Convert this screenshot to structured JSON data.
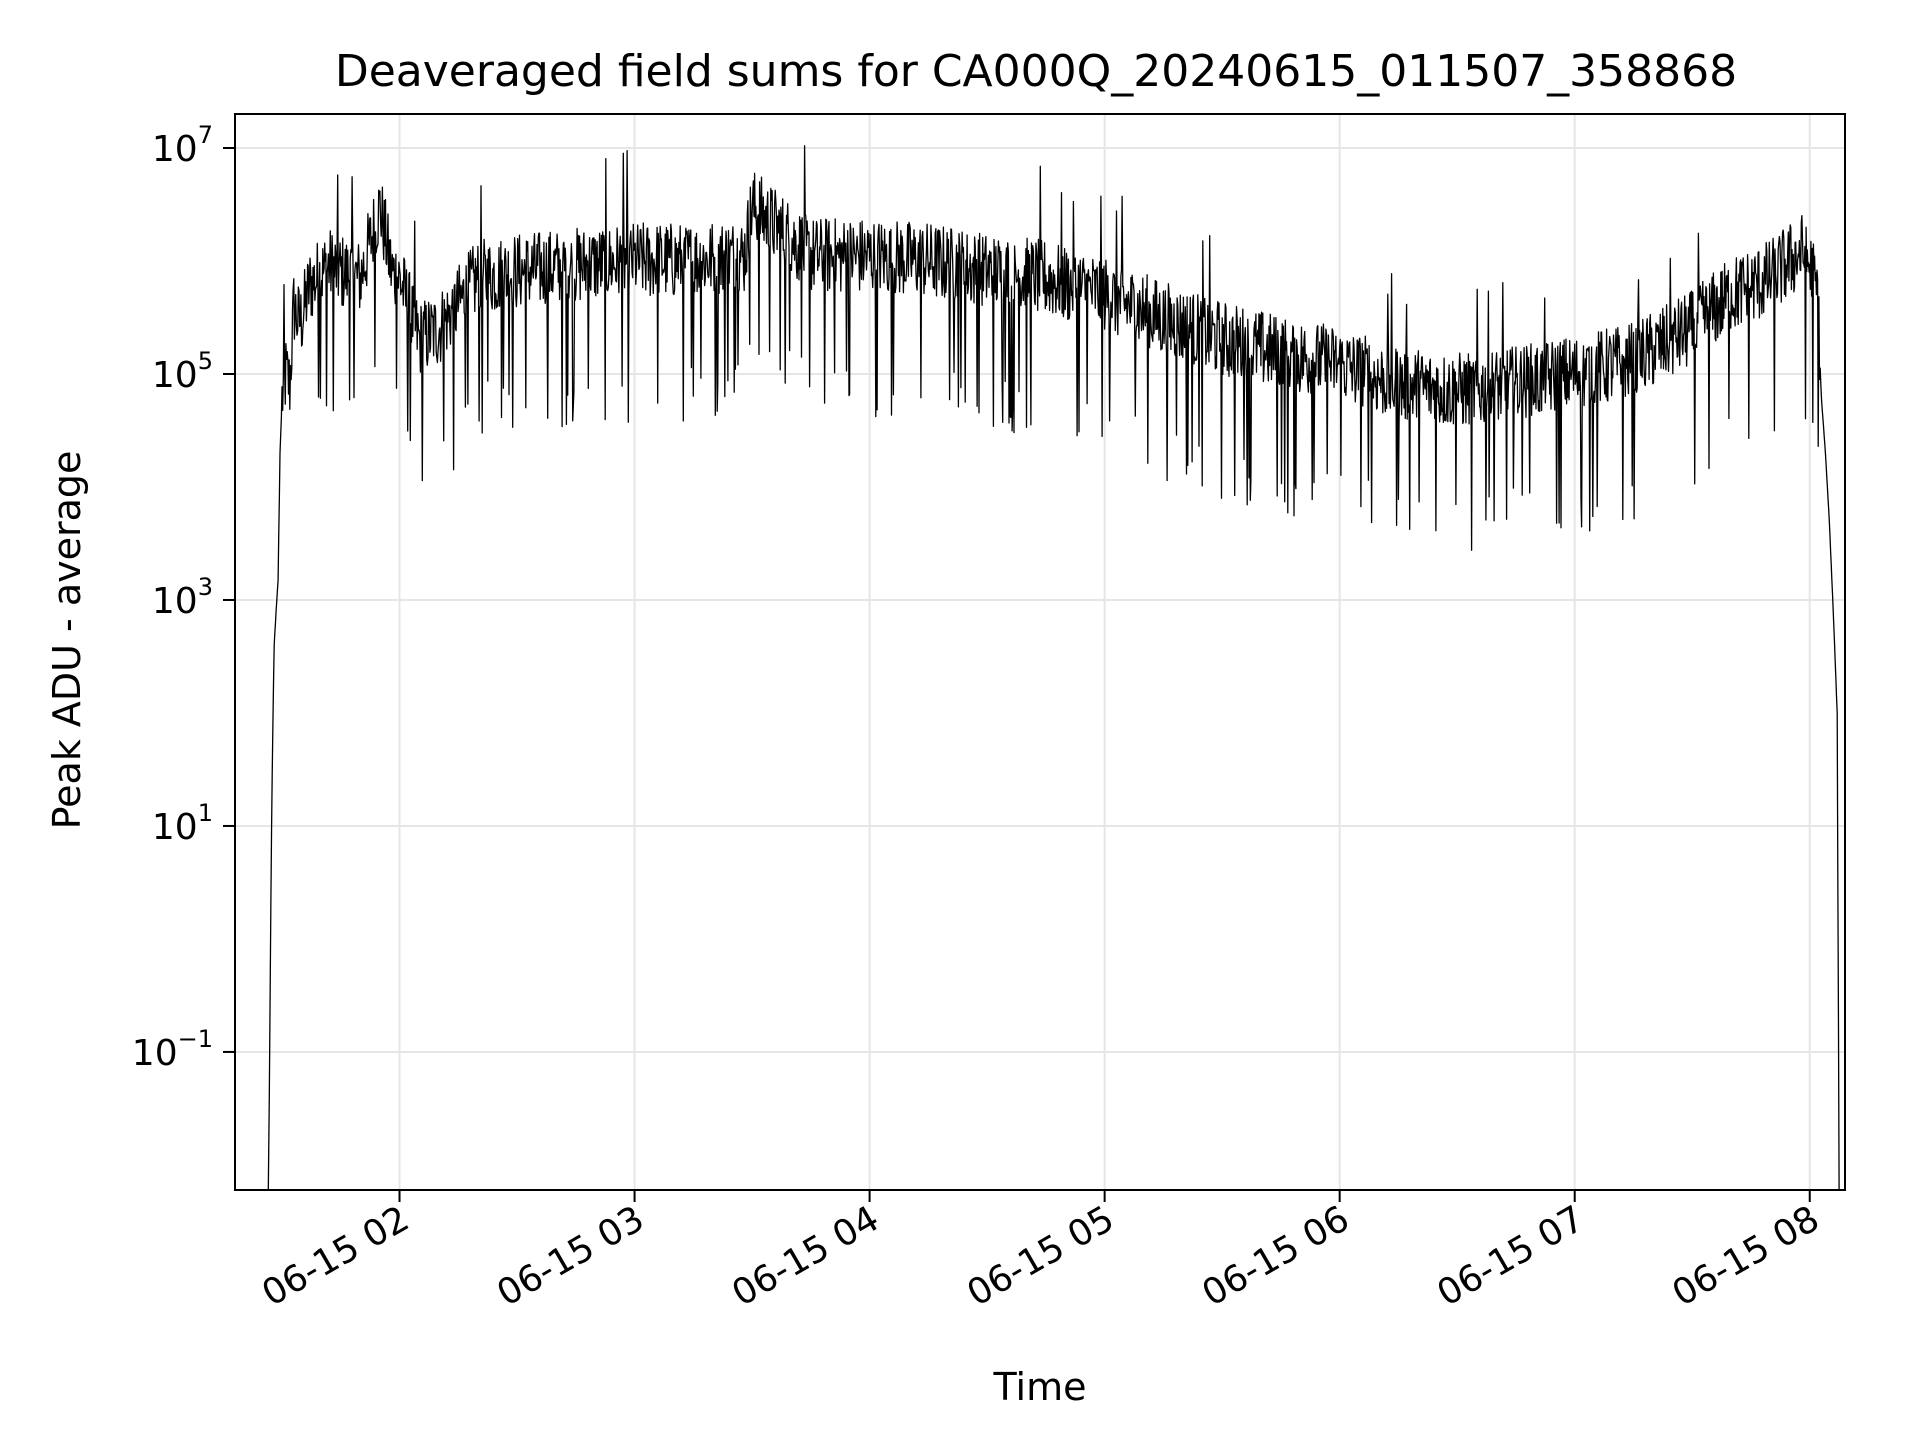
{
  "chart_data": {
    "type": "line",
    "title": "Deaveraged field sums for CA000Q_20240615_011507_358868",
    "xlabel": "Time",
    "ylabel": "Peak ADU - average",
    "yscale": "log",
    "ylim": [
      0.006,
      20000000
    ],
    "xlim": [
      "2024-06-15 01:18",
      "2024-06-15 08:09"
    ],
    "grid": true,
    "line_color": "#000000",
    "x_ticks": [
      {
        "value": "2024-06-15 02:00",
        "label": "06-15 02"
      },
      {
        "value": "2024-06-15 03:00",
        "label": "06-15 03"
      },
      {
        "value": "2024-06-15 04:00",
        "label": "06-15 04"
      },
      {
        "value": "2024-06-15 05:00",
        "label": "06-15 05"
      },
      {
        "value": "2024-06-15 06:00",
        "label": "06-15 06"
      },
      {
        "value": "2024-06-15 07:00",
        "label": "06-15 07"
      },
      {
        "value": "2024-06-15 08:00",
        "label": "06-15 08"
      }
    ],
    "y_ticks": [
      {
        "value": 0.1,
        "base": "10",
        "exp": "−1"
      },
      {
        "value": 10,
        "base": "10",
        "exp": "1"
      },
      {
        "value": 1000,
        "base": "10",
        "exp": "3"
      },
      {
        "value": 100000,
        "base": "10",
        "exp": "5"
      },
      {
        "value": 10000000,
        "base": "10",
        "exp": "7"
      }
    ],
    "series": [
      {
        "x": [
          "2024-06-15 01:26:30",
          "2024-06-15 01:26:45",
          "2024-06-15 01:27:00",
          "2024-06-15 01:27:20",
          "2024-06-15 01:27:40",
          "2024-06-15 01:28:00",
          "2024-06-15 01:28:30",
          "2024-06-15 01:29:00",
          "2024-06-15 01:29:30",
          "2024-06-15 01:30:00",
          "2024-06-15 01:31:00",
          "2024-06-15 01:32:00",
          "2024-06-15 01:33:00",
          "2024-06-15 01:34:00",
          "2024-06-15 01:35:00",
          "2024-06-15 01:37:00",
          "2024-06-15 01:39:00",
          "2024-06-15 01:42:00",
          "2024-06-15 01:45:00",
          "2024-06-15 01:50:00",
          "2024-06-15 01:55:00",
          "2024-06-15 01:58:00",
          "2024-06-15 02:00:00",
          "2024-06-15 02:05:00",
          "2024-06-15 02:10:00",
          "2024-06-15 02:20:00",
          "2024-06-15 02:30:00",
          "2024-06-15 02:45:00",
          "2024-06-15 03:00:00",
          "2024-06-15 03:15:00",
          "2024-06-15 03:28:00",
          "2024-06-15 03:30:00",
          "2024-06-15 03:45:00",
          "2024-06-15 04:00:00",
          "2024-06-15 04:15:00",
          "2024-06-15 04:30:00",
          "2024-06-15 04:45:00",
          "2024-06-15 05:00:00",
          "2024-06-15 05:15:00",
          "2024-06-15 05:30:00",
          "2024-06-15 05:45:00",
          "2024-06-15 06:00:00",
          "2024-06-15 06:15:00",
          "2024-06-15 06:30:00",
          "2024-06-15 06:45:00",
          "2024-06-15 07:00:00",
          "2024-06-15 07:15:00",
          "2024-06-15 07:30:00",
          "2024-06-15 07:40:00",
          "2024-06-15 07:50:00",
          "2024-06-15 07:55:00",
          "2024-06-15 07:58:00",
          "2024-06-15 08:00:00",
          "2024-06-15 08:02:00",
          "2024-06-15 08:03:00",
          "2024-06-15 08:04:00",
          "2024-06-15 08:05:00",
          "2024-06-15 08:06:00",
          "2024-06-15 08:07:00",
          "2024-06-15 08:07:30"
        ],
        "y": [
          0.006,
          0.04,
          0.5,
          10,
          80,
          400,
          800,
          1500,
          20000,
          60000,
          100000,
          80000,
          400000,
          300000,
          300000,
          600000,
          700000,
          900000,
          800000,
          700000,
          3000000,
          800000,
          700000,
          200000,
          250000,
          700000,
          800000,
          900000,
          1000000,
          1000000,
          1100000,
          3000000,
          1100000,
          1100000,
          1000000,
          800000,
          700000,
          500000,
          300000,
          200000,
          150000,
          120000,
          80000,
          70000,
          80000,
          100000,
          130000,
          250000,
          500000,
          700000,
          1000000,
          1200000,
          900000,
          500000,
          60000,
          20000,
          5000,
          800,
          100,
          0.006
        ]
      }
    ]
  }
}
